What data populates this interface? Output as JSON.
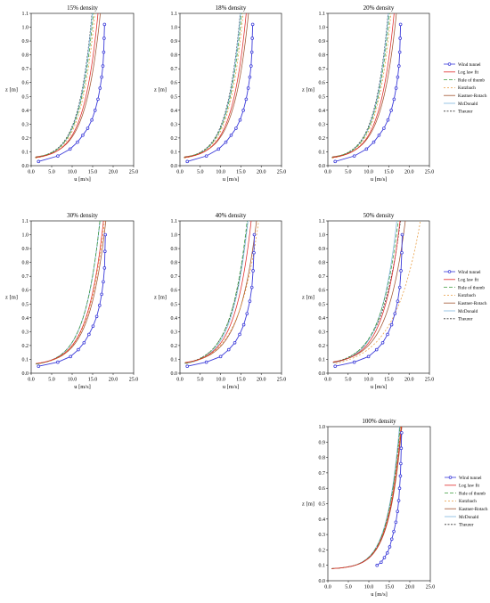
{
  "chart_data": [
    {
      "type": "line",
      "title": "15% density",
      "xlabel": "u [m/s]",
      "ylabel": "z [m]",
      "xlim": [
        0,
        25
      ],
      "ylim": [
        0,
        1.1
      ],
      "xticks": [
        "0.0",
        "5.0",
        "10.0",
        "15.0",
        "20.0",
        "25.0"
      ],
      "yticks": [
        "0.0",
        "0.1",
        "0.2",
        "0.3",
        "0.4",
        "0.5",
        "0.6",
        "0.7",
        "0.8",
        "0.9",
        "1.0",
        "1.1"
      ],
      "grid": false,
      "legend": "none",
      "series": [
        {
          "key": "wind",
          "x": [
            1.8,
            6.5,
            9.5,
            11.3,
            12.6,
            13.8,
            14.8,
            15.6,
            16.3,
            16.8,
            17.2,
            17.5,
            17.7,
            17.8,
            17.9
          ],
          "y": [
            0.03,
            0.07,
            0.12,
            0.17,
            0.22,
            0.27,
            0.33,
            0.4,
            0.48,
            0.56,
            0.64,
            0.72,
            0.82,
            0.92,
            1.02
          ]
        },
        {
          "key": "log",
          "params": {
            "us": 1.4,
            "z0": 0.01,
            "d": 0.045
          }
        },
        {
          "key": "thumb",
          "params": {
            "us": 1.33,
            "z0": 0.011,
            "d": 0.045
          }
        },
        {
          "key": "kutz",
          "params": {
            "us": 1.36,
            "z0": 0.011,
            "d": 0.04
          }
        },
        {
          "key": "kastner",
          "params": {
            "us": 1.45,
            "z0": 0.01,
            "d": 0.05
          }
        },
        {
          "key": "mcd",
          "params": {
            "us": 1.28,
            "z0": 0.01,
            "d": 0.045
          }
        },
        {
          "key": "theurer",
          "params": {
            "us": 1.3,
            "z0": 0.011,
            "d": 0.045
          }
        }
      ]
    },
    {
      "type": "line",
      "title": "18% density",
      "xlabel": "u [m/s]",
      "ylabel": "z [m]",
      "xlim": [
        0,
        25
      ],
      "ylim": [
        0,
        1.1
      ],
      "xticks": [
        "0.0",
        "5.0",
        "10.0",
        "15.0",
        "20.0",
        "25.0"
      ],
      "yticks": [
        "0.0",
        "0.1",
        "0.2",
        "0.3",
        "0.4",
        "0.5",
        "0.6",
        "0.7",
        "0.8",
        "0.9",
        "1.0",
        "1.1"
      ],
      "grid": false,
      "legend": "none",
      "series": [
        {
          "key": "wind",
          "x": [
            1.8,
            6.5,
            9.5,
            11.3,
            12.6,
            13.8,
            14.8,
            15.6,
            16.3,
            16.8,
            17.2,
            17.5,
            17.7,
            17.8,
            17.9
          ],
          "y": [
            0.03,
            0.07,
            0.12,
            0.17,
            0.22,
            0.27,
            0.33,
            0.4,
            0.48,
            0.56,
            0.64,
            0.72,
            0.82,
            0.92,
            1.02
          ]
        },
        {
          "key": "log",
          "params": {
            "us": 1.4,
            "z0": 0.01,
            "d": 0.045
          }
        },
        {
          "key": "thumb",
          "params": {
            "us": 1.33,
            "z0": 0.011,
            "d": 0.045
          }
        },
        {
          "key": "kutz",
          "params": {
            "us": 1.36,
            "z0": 0.011,
            "d": 0.04
          }
        },
        {
          "key": "kastner",
          "params": {
            "us": 1.45,
            "z0": 0.01,
            "d": 0.05
          }
        },
        {
          "key": "mcd",
          "params": {
            "us": 1.28,
            "z0": 0.01,
            "d": 0.045
          }
        },
        {
          "key": "theurer",
          "params": {
            "us": 1.3,
            "z0": 0.011,
            "d": 0.045
          }
        }
      ]
    },
    {
      "type": "line",
      "title": "20% density",
      "xlabel": "u [m/s]",
      "ylabel": "z [m]",
      "xlim": [
        0,
        25
      ],
      "ylim": [
        0,
        1.1
      ],
      "xticks": [
        "0.0",
        "5.0",
        "10.0",
        "15.0",
        "20.0",
        "25.0"
      ],
      "yticks": [
        "0.0",
        "0.1",
        "0.2",
        "0.3",
        "0.4",
        "0.5",
        "0.6",
        "0.7",
        "0.8",
        "0.9",
        "1.0",
        "1.1"
      ],
      "grid": false,
      "legend": "right",
      "series": [
        {
          "key": "wind",
          "x": [
            1.8,
            6.5,
            9.5,
            11.3,
            12.6,
            13.8,
            14.8,
            15.6,
            16.3,
            16.8,
            17.2,
            17.5,
            17.7,
            17.8,
            17.9
          ],
          "y": [
            0.03,
            0.07,
            0.12,
            0.17,
            0.22,
            0.27,
            0.33,
            0.4,
            0.48,
            0.56,
            0.64,
            0.72,
            0.82,
            0.92,
            1.02
          ]
        },
        {
          "key": "log",
          "params": {
            "us": 1.4,
            "z0": 0.01,
            "d": 0.045
          }
        },
        {
          "key": "thumb",
          "params": {
            "us": 1.33,
            "z0": 0.011,
            "d": 0.045
          }
        },
        {
          "key": "kutz",
          "params": {
            "us": 1.36,
            "z0": 0.011,
            "d": 0.04
          }
        },
        {
          "key": "kastner",
          "params": {
            "us": 1.45,
            "z0": 0.01,
            "d": 0.05
          }
        },
        {
          "key": "mcd",
          "params": {
            "us": 1.28,
            "z0": 0.01,
            "d": 0.045
          }
        },
        {
          "key": "theurer",
          "params": {
            "us": 1.3,
            "z0": 0.011,
            "d": 0.045
          }
        }
      ]
    },
    {
      "type": "line",
      "title": "30% density",
      "xlabel": "u [m/s]",
      "ylabel": "z [m]",
      "xlim": [
        0,
        25
      ],
      "ylim": [
        0,
        1.1
      ],
      "xticks": [
        "0.0",
        "5.0",
        "10.0",
        "15.0",
        "20.0",
        "25.0"
      ],
      "yticks": [
        "0.0",
        "0.1",
        "0.2",
        "0.3",
        "0.4",
        "0.5",
        "0.6",
        "0.7",
        "0.8",
        "0.9",
        "1.0",
        "1.1"
      ],
      "grid": false,
      "legend": "none",
      "series": [
        {
          "key": "wind",
          "x": [
            1.8,
            6.5,
            9.6,
            11.5,
            12.9,
            14.1,
            15.1,
            16.0,
            16.7,
            17.2,
            17.6,
            17.9,
            18.0,
            18.1
          ],
          "y": [
            0.05,
            0.08,
            0.12,
            0.17,
            0.22,
            0.28,
            0.34,
            0.41,
            0.49,
            0.57,
            0.66,
            0.76,
            0.88,
            1.0
          ]
        },
        {
          "key": "log",
          "params": {
            "us": 1.55,
            "z0": 0.011,
            "d": 0.055
          }
        },
        {
          "key": "thumb",
          "params": {
            "us": 1.5,
            "z0": 0.012,
            "d": 0.05
          }
        },
        {
          "key": "kutz",
          "params": {
            "us": 1.6,
            "z0": 0.012,
            "d": 0.05
          }
        },
        {
          "key": "kastner",
          "params": {
            "us": 1.6,
            "z0": 0.011,
            "d": 0.055
          }
        },
        {
          "key": "mcd",
          "params": {
            "us": 1.5,
            "z0": 0.012,
            "d": 0.05
          }
        },
        {
          "key": "theurer",
          "params": {
            "us": 1.5,
            "z0": 0.012,
            "d": 0.05
          }
        }
      ]
    },
    {
      "type": "line",
      "title": "40% density",
      "xlabel": "u [m/s]",
      "ylabel": "z [m]",
      "xlim": [
        0,
        25
      ],
      "ylim": [
        0,
        1.1
      ],
      "xticks": [
        "0.0",
        "5.0",
        "10.0",
        "15.0",
        "20.0",
        "25.0"
      ],
      "yticks": [
        "0.0",
        "0.1",
        "0.2",
        "0.3",
        "0.4",
        "0.5",
        "0.6",
        "0.7",
        "0.8",
        "0.9",
        "1.0",
        "1.1"
      ],
      "grid": false,
      "legend": "none",
      "series": [
        {
          "key": "wind",
          "x": [
            1.8,
            6.5,
            10.0,
            12.0,
            13.5,
            14.7,
            15.7,
            16.5,
            17.2,
            17.7,
            18.0,
            18.2,
            18.3
          ],
          "y": [
            0.05,
            0.08,
            0.12,
            0.17,
            0.22,
            0.28,
            0.35,
            0.43,
            0.52,
            0.62,
            0.74,
            0.87,
            1.0
          ]
        },
        {
          "key": "log",
          "params": {
            "us": 1.6,
            "z0": 0.013,
            "d": 0.058
          }
        },
        {
          "key": "thumb",
          "params": {
            "us": 1.58,
            "z0": 0.016,
            "d": 0.05
          }
        },
        {
          "key": "kutz",
          "params": {
            "us": 2.0,
            "z0": 0.022,
            "d": 0.04
          }
        },
        {
          "key": "kastner",
          "params": {
            "us": 1.72,
            "z0": 0.013,
            "d": 0.06
          }
        },
        {
          "key": "mcd",
          "params": {
            "us": 1.55,
            "z0": 0.014,
            "d": 0.05
          }
        },
        {
          "key": "theurer",
          "params": {
            "us": 1.62,
            "z0": 0.017,
            "d": 0.05
          }
        }
      ]
    },
    {
      "type": "line",
      "title": "50% density",
      "xlabel": "u [m/s]",
      "ylabel": "z [m]",
      "xlim": [
        0,
        25
      ],
      "ylim": [
        0,
        1.1
      ],
      "xticks": [
        "0.0",
        "5.0",
        "10.0",
        "15.0",
        "20.0",
        "25.0"
      ],
      "yticks": [
        "0.0",
        "0.1",
        "0.2",
        "0.3",
        "0.4",
        "0.5",
        "0.6",
        "0.7",
        "0.8",
        "0.9",
        "1.0",
        "1.1"
      ],
      "grid": false,
      "legend": "right",
      "series": [
        {
          "key": "wind",
          "x": [
            1.8,
            6.5,
            10.0,
            12.0,
            13.5,
            14.7,
            15.7,
            16.5,
            17.2,
            17.7,
            18.0,
            18.2,
            18.3
          ],
          "y": [
            0.05,
            0.08,
            0.12,
            0.17,
            0.22,
            0.28,
            0.35,
            0.43,
            0.52,
            0.62,
            0.74,
            0.87,
            1.0
          ]
        },
        {
          "key": "log",
          "params": {
            "us": 1.65,
            "z0": 0.014,
            "d": 0.06
          }
        },
        {
          "key": "thumb",
          "params": {
            "us": 1.75,
            "z0": 0.02,
            "d": 0.05
          }
        },
        {
          "key": "kutz",
          "params": {
            "us": 2.55,
            "z0": 0.03,
            "d": 0.03
          }
        },
        {
          "key": "kastner",
          "params": {
            "us": 1.8,
            "z0": 0.015,
            "d": 0.062
          }
        },
        {
          "key": "mcd",
          "params": {
            "us": 1.6,
            "z0": 0.015,
            "d": 0.055
          }
        },
        {
          "key": "theurer",
          "params": {
            "us": 1.85,
            "z0": 0.022,
            "d": 0.05
          }
        }
      ]
    },
    {
      "type": "line",
      "title": "100% density",
      "xlabel": "u [m/s]",
      "ylabel": "z [m]",
      "xlim": [
        0,
        25
      ],
      "ylim": [
        0,
        1.0
      ],
      "xticks": [
        "0.0",
        "5.0",
        "10.0",
        "15.0",
        "20.0",
        "25.0"
      ],
      "yticks": [
        "0.0",
        "0.1",
        "0.2",
        "0.3",
        "0.4",
        "0.5",
        "0.6",
        "0.7",
        "0.8",
        "0.9",
        "1.0"
      ],
      "grid": false,
      "legend": "right",
      "series": [
        {
          "key": "wind",
          "x": [
            12.0,
            13.0,
            13.8,
            14.5,
            15.1,
            15.6,
            16.1,
            16.6,
            17.0,
            17.3,
            17.5,
            17.7,
            17.8,
            17.9,
            18.0
          ],
          "y": [
            0.1,
            0.12,
            0.15,
            0.18,
            0.22,
            0.27,
            0.32,
            0.38,
            0.45,
            0.52,
            0.6,
            0.68,
            0.76,
            0.86,
            0.96
          ]
        },
        {
          "key": "log",
          "params": {
            "us": 1.25,
            "z0": 0.003,
            "d": 0.075
          }
        },
        {
          "key": "thumb",
          "params": {
            "us": 1.23,
            "z0": 0.003,
            "d": 0.075
          }
        },
        {
          "key": "kutz",
          "params": {
            "us": 1.24,
            "z0": 0.003,
            "d": 0.075
          }
        },
        {
          "key": "kastner",
          "params": {
            "us": 1.26,
            "z0": 0.003,
            "d": 0.075
          }
        },
        {
          "key": "mcd",
          "params": {
            "us": 1.22,
            "z0": 0.003,
            "d": 0.075
          }
        },
        {
          "key": "theurer",
          "params": {
            "us": 1.23,
            "z0": 0.003,
            "d": 0.075
          }
        }
      ]
    }
  ],
  "legend_entries": [
    {
      "key": "wind",
      "label": "Wind tunnel",
      "color": "#3b3bd9",
      "dash": "",
      "marker": true
    },
    {
      "key": "log",
      "label": "Log law fit",
      "color": "#e02828",
      "dash": "",
      "marker": false
    },
    {
      "key": "thumb",
      "label": "Rule of thumb",
      "color": "#3a9a3a",
      "dash": "4,2",
      "marker": false
    },
    {
      "key": "kutz",
      "label": "Kutzbach",
      "color": "#e89a3c",
      "dash": "2,2",
      "marker": false
    },
    {
      "key": "kastner",
      "label": "Kastner-Rotach",
      "color": "#a0522d",
      "dash": "",
      "marker": false
    },
    {
      "key": "mcd",
      "label": "McDonald",
      "color": "#7fb7e0",
      "dash": "",
      "marker": false
    },
    {
      "key": "theurer",
      "label": "Theurer",
      "color": "#333333",
      "dash": "2,1.5",
      "marker": false
    }
  ]
}
